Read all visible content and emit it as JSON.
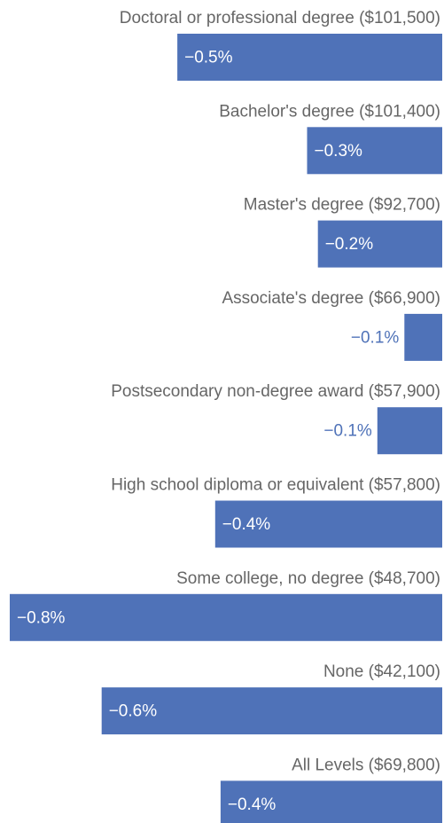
{
  "chart_data": {
    "type": "bar",
    "orientation": "horizontal",
    "categories": [
      "Doctoral or professional degree ($101,500)",
      "Bachelor's degree ($101,400)",
      "Master's degree ($92,700)",
      "Associate's degree ($66,900)",
      "Postsecondary non-degree award ($57,900)",
      "High school diploma or equivalent ($57,800)",
      "Some college, no degree ($48,700)",
      "None ($42,100)",
      "All Levels ($69,800)"
    ],
    "values": [
      -0.49,
      -0.25,
      -0.23,
      -0.07,
      -0.12,
      -0.42,
      -0.8,
      -0.63,
      -0.41
    ],
    "value_labels": [
      "−0.5%",
      "−0.3%",
      "−0.2%",
      "−0.1%",
      "−0.1%",
      "−0.4%",
      "−0.8%",
      "−0.6%",
      "−0.4%"
    ],
    "color": "#4f72b8",
    "xlim": [
      -0.8,
      0
    ]
  }
}
